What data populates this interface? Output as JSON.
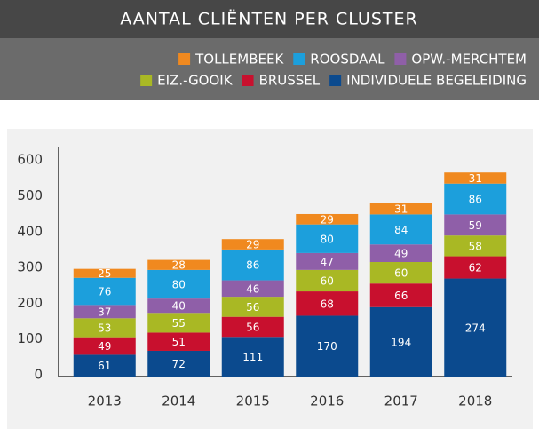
{
  "chart_data": {
    "type": "stacked_bar",
    "title": "AANTAL CLIËNTEN PER CLUSTER",
    "categories": [
      "2013",
      "2014",
      "2015",
      "2016",
      "2017",
      "2018"
    ],
    "series": [
      {
        "name": "INDIVIDUELE BEGELEIDING",
        "color": "#0b4a8e",
        "values": [
          61,
          72,
          111,
          170,
          194,
          274
        ]
      },
      {
        "name": "BRUSSEL",
        "color": "#c8102e",
        "values": [
          49,
          51,
          56,
          68,
          66,
          62
        ]
      },
      {
        "name": "EIZ.-GOOIK",
        "color": "#a9b824",
        "values": [
          53,
          55,
          56,
          60,
          60,
          58
        ]
      },
      {
        "name": "OPW.-MERCHTEM",
        "color": "#8f5fa8",
        "values": [
          37,
          40,
          46,
          47,
          49,
          59
        ]
      },
      {
        "name": "ROOSDAAL",
        "color": "#1c9fdc",
        "values": [
          76,
          80,
          86,
          80,
          84,
          86
        ]
      },
      {
        "name": "TOLLEMBEEK",
        "color": "#f0891f",
        "values": [
          25,
          28,
          29,
          29,
          31,
          31
        ]
      }
    ],
    "ylim": [
      0,
      640
    ],
    "yticks": [
      0,
      100,
      200,
      300,
      400,
      500,
      600
    ],
    "grid": false
  }
}
